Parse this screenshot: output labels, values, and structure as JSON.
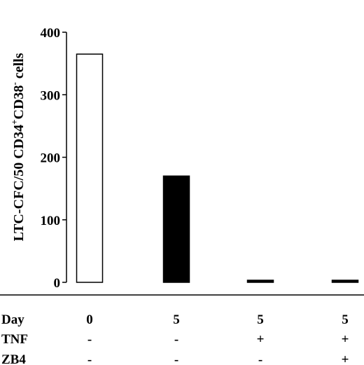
{
  "chart_data": {
    "type": "bar",
    "ylabel_main": "LTC-CFC/50 CD34",
    "ylabel_sup1": "+",
    "ylabel_mid": "CD38",
    "ylabel_sup2": "-",
    "ylabel_end": " cells",
    "ylim": [
      0,
      400
    ],
    "yticks": [
      0,
      100,
      200,
      300,
      400
    ],
    "categories": [
      "0",
      "5",
      "5",
      "5"
    ],
    "values": [
      365,
      170,
      2,
      3
    ],
    "fills": [
      "#ffffff",
      "#000000",
      "#000000",
      "#000000"
    ],
    "conditions": [
      {
        "label": "Day",
        "values": [
          "0",
          "5",
          "5",
          "5"
        ]
      },
      {
        "label": "TNF",
        "values": [
          "-",
          "-",
          "+",
          "+"
        ]
      },
      {
        "label": "ZB4",
        "values": [
          "-",
          "-",
          "-",
          "+"
        ]
      }
    ]
  }
}
